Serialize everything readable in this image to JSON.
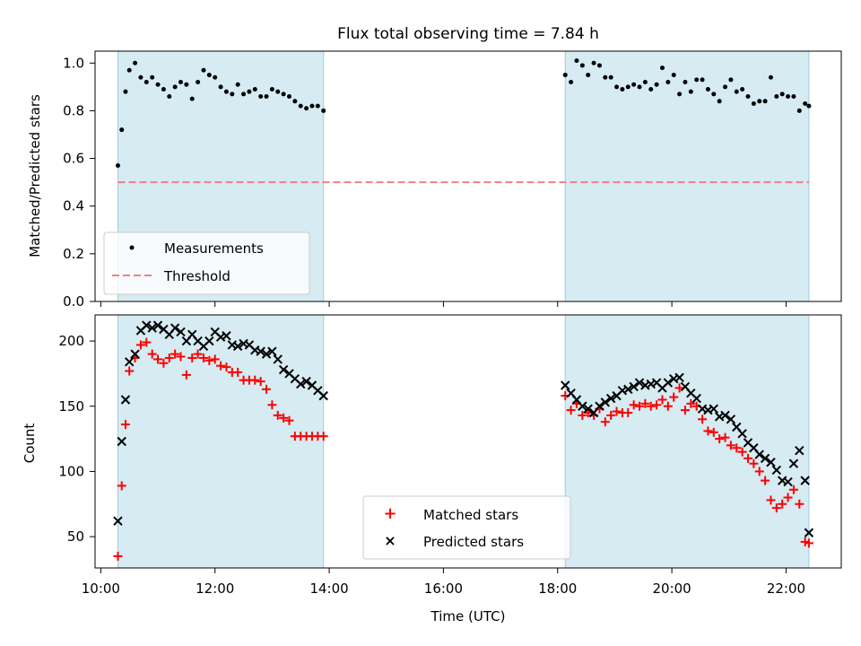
{
  "chart_data": [
    {
      "type": "scatter",
      "title": "Flux total observing time = 7.84 h",
      "ylabel": "Matched/Predicted stars",
      "xlabel": "",
      "ylim": [
        0,
        1.05
      ],
      "yticks": [
        "0.0",
        "0.2",
        "0.4",
        "0.6",
        "0.8",
        "1.0"
      ],
      "shaded_intervals": [
        [
          "10:18",
          "13:54"
        ],
        [
          "18:08",
          "22:24"
        ]
      ],
      "threshold": 0.5,
      "legend": {
        "position": "lower-left",
        "entries": [
          "Measurements",
          "Threshold"
        ]
      },
      "series": [
        {
          "name": "Measurements",
          "x": [
            "10:18",
            "10:22",
            "10:26",
            "10:30",
            "10:36",
            "10:42",
            "10:48",
            "10:54",
            "11:00",
            "11:06",
            "11:12",
            "11:18",
            "11:24",
            "11:30",
            "11:36",
            "11:42",
            "11:48",
            "11:54",
            "12:00",
            "12:06",
            "12:12",
            "12:18",
            "12:24",
            "12:30",
            "12:36",
            "12:42",
            "12:48",
            "12:54",
            "13:00",
            "13:06",
            "13:12",
            "13:18",
            "13:24",
            "13:30",
            "13:36",
            "13:42",
            "13:48",
            "13:54",
            "18:08",
            "18:14",
            "18:20",
            "18:26",
            "18:32",
            "18:38",
            "18:44",
            "18:50",
            "18:56",
            "19:02",
            "19:08",
            "19:14",
            "19:20",
            "19:26",
            "19:32",
            "19:38",
            "19:44",
            "19:50",
            "19:56",
            "20:02",
            "20:08",
            "20:14",
            "20:20",
            "20:26",
            "20:32",
            "20:38",
            "20:44",
            "20:50",
            "20:56",
            "21:02",
            "21:08",
            "21:14",
            "21:20",
            "21:26",
            "21:32",
            "21:38",
            "21:44",
            "21:50",
            "21:56",
            "22:02",
            "22:08",
            "22:14",
            "22:20",
            "22:24"
          ],
          "y": [
            0.57,
            0.72,
            0.88,
            0.97,
            1.0,
            0.94,
            0.92,
            0.94,
            0.91,
            0.89,
            0.86,
            0.9,
            0.92,
            0.91,
            0.85,
            0.92,
            0.97,
            0.95,
            0.94,
            0.9,
            0.88,
            0.87,
            0.91,
            0.87,
            0.88,
            0.89,
            0.86,
            0.86,
            0.89,
            0.88,
            0.87,
            0.86,
            0.84,
            0.82,
            0.81,
            0.82,
            0.82,
            0.8,
            0.95,
            0.92,
            1.01,
            0.99,
            0.95,
            1.0,
            0.99,
            0.94,
            0.94,
            0.9,
            0.89,
            0.9,
            0.91,
            0.9,
            0.92,
            0.89,
            0.91,
            0.98,
            0.92,
            0.95,
            0.87,
            0.92,
            0.88,
            0.93,
            0.93,
            0.89,
            0.87,
            0.84,
            0.9,
            0.93,
            0.88,
            0.89,
            0.86,
            0.83,
            0.84,
            0.84,
            0.94,
            0.86,
            0.87,
            0.86,
            0.86,
            0.8,
            0.83,
            0.82
          ]
        },
        {
          "name": "Threshold",
          "y": 0.5
        }
      ]
    },
    {
      "type": "scatter",
      "title": "",
      "xlabel": "Time (UTC)",
      "ylabel": "Count",
      "ylim": [
        26,
        220
      ],
      "yticks": [
        "50",
        "100",
        "150",
        "200"
      ],
      "xticks": [
        "10:00",
        "12:00",
        "14:00",
        "16:00",
        "18:00",
        "20:00",
        "22:00"
      ],
      "xlim": [
        "09:54",
        "22:58"
      ],
      "legend": {
        "position": "lower-center",
        "entries": [
          "Matched stars",
          "Predicted stars"
        ]
      },
      "series": [
        {
          "name": "Matched stars",
          "x": [
            "10:18",
            "10:22",
            "10:26",
            "10:30",
            "10:36",
            "10:42",
            "10:48",
            "10:54",
            "11:00",
            "11:06",
            "11:12",
            "11:18",
            "11:24",
            "11:30",
            "11:36",
            "11:42",
            "11:48",
            "11:54",
            "12:00",
            "12:06",
            "12:12",
            "12:18",
            "12:24",
            "12:30",
            "12:36",
            "12:42",
            "12:48",
            "12:54",
            "13:00",
            "13:06",
            "13:12",
            "13:18",
            "13:24",
            "13:30",
            "13:36",
            "13:42",
            "13:48",
            "13:54",
            "18:08",
            "18:14",
            "18:20",
            "18:26",
            "18:32",
            "18:38",
            "18:44",
            "18:50",
            "18:56",
            "19:02",
            "19:08",
            "19:14",
            "19:20",
            "19:26",
            "19:32",
            "19:38",
            "19:44",
            "19:50",
            "19:56",
            "20:02",
            "20:08",
            "20:14",
            "20:20",
            "20:26",
            "20:32",
            "20:38",
            "20:44",
            "20:50",
            "20:56",
            "21:02",
            "21:08",
            "21:14",
            "21:20",
            "21:26",
            "21:32",
            "21:38",
            "21:44",
            "21:50",
            "21:56",
            "22:02",
            "22:08",
            "22:14",
            "22:20",
            "22:24"
          ],
          "y": [
            35,
            89,
            136,
            177,
            187,
            197,
            199,
            190,
            186,
            183,
            187,
            190,
            188,
            174,
            187,
            190,
            187,
            185,
            186,
            181,
            180,
            176,
            176,
            170,
            170,
            170,
            169,
            163,
            151,
            143,
            141,
            139,
            127,
            127,
            127,
            127,
            127,
            127,
            158,
            147,
            152,
            143,
            145,
            143,
            148,
            138,
            143,
            146,
            145,
            145,
            151,
            150,
            152,
            150,
            151,
            155,
            150,
            157,
            164,
            147,
            152,
            150,
            140,
            131,
            130,
            125,
            126,
            120,
            118,
            115,
            110,
            106,
            100,
            93,
            78,
            72,
            75,
            80,
            86,
            75,
            46,
            45
          ]
        },
        {
          "name": "Predicted stars",
          "x": [
            "10:18",
            "10:22",
            "10:26",
            "10:30",
            "10:36",
            "10:42",
            "10:48",
            "10:54",
            "11:00",
            "11:06",
            "11:12",
            "11:18",
            "11:24",
            "11:30",
            "11:36",
            "11:42",
            "11:48",
            "11:54",
            "12:00",
            "12:06",
            "12:12",
            "12:18",
            "12:24",
            "12:30",
            "12:36",
            "12:42",
            "12:48",
            "12:54",
            "13:00",
            "13:06",
            "13:12",
            "13:18",
            "13:24",
            "13:30",
            "13:36",
            "13:42",
            "13:48",
            "13:54",
            "18:08",
            "18:14",
            "18:20",
            "18:26",
            "18:32",
            "18:38",
            "18:44",
            "18:50",
            "18:56",
            "19:02",
            "19:08",
            "19:14",
            "19:20",
            "19:26",
            "19:32",
            "19:38",
            "19:44",
            "19:50",
            "19:56",
            "20:02",
            "20:08",
            "20:14",
            "20:20",
            "20:26",
            "20:32",
            "20:38",
            "20:44",
            "20:50",
            "20:56",
            "21:02",
            "21:08",
            "21:14",
            "21:20",
            "21:26",
            "21:32",
            "21:38",
            "21:44",
            "21:50",
            "21:56",
            "22:02",
            "22:08",
            "22:14",
            "22:20",
            "22:24"
          ],
          "y": [
            62,
            123,
            155,
            184,
            190,
            208,
            212,
            210,
            212,
            209,
            205,
            210,
            207,
            200,
            205,
            200,
            196,
            200,
            207,
            203,
            204,
            197,
            196,
            198,
            197,
            193,
            192,
            190,
            192,
            186,
            178,
            175,
            171,
            167,
            169,
            166,
            162,
            158,
            166,
            160,
            155,
            150,
            148,
            145,
            150,
            153,
            156,
            158,
            162,
            163,
            165,
            168,
            166,
            167,
            168,
            164,
            168,
            171,
            172,
            165,
            160,
            156,
            148,
            147,
            148,
            142,
            143,
            140,
            134,
            129,
            122,
            118,
            113,
            110,
            107,
            101,
            93,
            92,
            106,
            116,
            93,
            53
          ]
        }
      ]
    }
  ]
}
